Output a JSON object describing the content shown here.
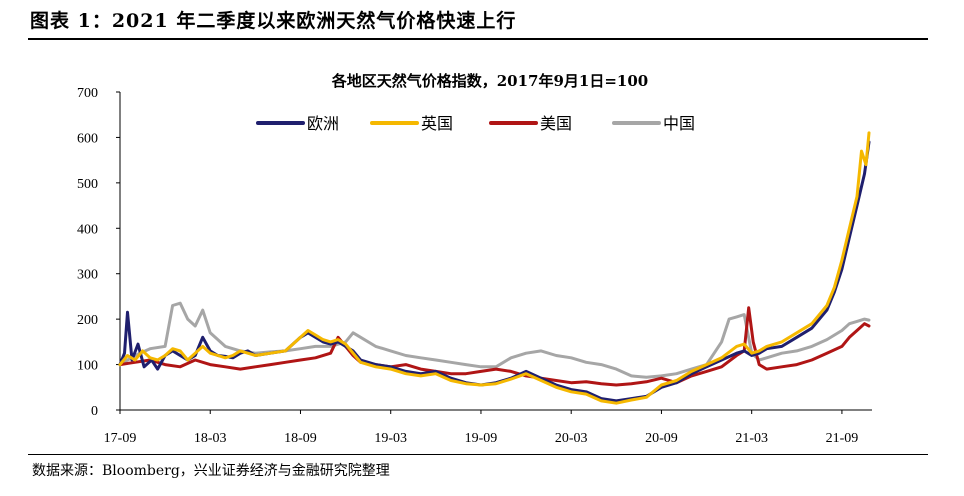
{
  "figure_title": "图表 1：2021 年二季度以来欧洲天然气价格快速上行",
  "source_note": "数据来源：Bloomberg，兴业证券经济与金融研究院整理",
  "chart_data": {
    "type": "line",
    "title": "各地区天然气价格指数，2017年9月1日=100",
    "xlabel": "",
    "ylabel": "",
    "ylim": [
      0,
      700
    ],
    "yticks": [
      0,
      100,
      200,
      300,
      400,
      500,
      600,
      700
    ],
    "xlim": [
      0,
      50
    ],
    "xticks": [
      {
        "label": "17-09",
        "value": 0
      },
      {
        "label": "18-03",
        "value": 6
      },
      {
        "label": "18-09",
        "value": 12
      },
      {
        "label": "19-03",
        "value": 18
      },
      {
        "label": "19-09",
        "value": 24
      },
      {
        "label": "20-03",
        "value": 30
      },
      {
        "label": "20-09",
        "value": 36
      },
      {
        "label": "21-03",
        "value": 42
      },
      {
        "label": "21-09",
        "value": 48
      }
    ],
    "grid": false,
    "legend_position": "top",
    "series": [
      {
        "name": "欧洲",
        "color": "#1f1f6e",
        "width": 3,
        "points": [
          [
            0,
            100
          ],
          [
            0.3,
            125
          ],
          [
            0.5,
            215
          ],
          [
            0.8,
            110
          ],
          [
            1.2,
            145
          ],
          [
            1.6,
            95
          ],
          [
            2.1,
            110
          ],
          [
            2.5,
            90
          ],
          [
            3,
            120
          ],
          [
            3.5,
            130
          ],
          [
            4,
            120
          ],
          [
            4.5,
            110
          ],
          [
            5,
            120
          ],
          [
            5.5,
            160
          ],
          [
            6,
            130
          ],
          [
            6.5,
            120
          ],
          [
            7,
            118
          ],
          [
            7.5,
            115
          ],
          [
            8,
            125
          ],
          [
            8.5,
            130
          ],
          [
            9,
            120
          ],
          [
            10,
            125
          ],
          [
            11,
            130
          ],
          [
            12,
            160
          ],
          [
            12.5,
            170
          ],
          [
            13,
            160
          ],
          [
            13.5,
            150
          ],
          [
            14,
            145
          ],
          [
            14.5,
            150
          ],
          [
            15,
            140
          ],
          [
            15.5,
            130
          ],
          [
            16,
            110
          ],
          [
            17,
            100
          ],
          [
            18,
            95
          ],
          [
            19,
            85
          ],
          [
            20,
            80
          ],
          [
            21,
            85
          ],
          [
            22,
            70
          ],
          [
            23,
            60
          ],
          [
            24,
            55
          ],
          [
            25,
            60
          ],
          [
            26,
            70
          ],
          [
            27,
            85
          ],
          [
            28,
            70
          ],
          [
            29,
            55
          ],
          [
            30,
            45
          ],
          [
            31,
            40
          ],
          [
            32,
            25
          ],
          [
            33,
            20
          ],
          [
            34,
            25
          ],
          [
            35,
            30
          ],
          [
            36,
            50
          ],
          [
            37,
            60
          ],
          [
            38,
            80
          ],
          [
            39,
            95
          ],
          [
            40,
            110
          ],
          [
            41,
            125
          ],
          [
            41.5,
            130
          ],
          [
            42,
            120
          ],
          [
            42.5,
            125
          ],
          [
            43,
            135
          ],
          [
            44,
            140
          ],
          [
            45,
            160
          ],
          [
            46,
            180
          ],
          [
            47,
            220
          ],
          [
            47.5,
            260
          ],
          [
            48,
            310
          ],
          [
            48.5,
            380
          ],
          [
            49,
            450
          ],
          [
            49.5,
            520
          ],
          [
            49.8,
            590
          ]
        ]
      },
      {
        "name": "英国",
        "color": "#f5b800",
        "width": 3,
        "points": [
          [
            0,
            100
          ],
          [
            0.5,
            120
          ],
          [
            1,
            110
          ],
          [
            1.5,
            130
          ],
          [
            2,
            115
          ],
          [
            2.5,
            110
          ],
          [
            3,
            120
          ],
          [
            3.5,
            135
          ],
          [
            4,
            130
          ],
          [
            4.5,
            110
          ],
          [
            5,
            125
          ],
          [
            5.5,
            140
          ],
          [
            6,
            125
          ],
          [
            6.5,
            120
          ],
          [
            7,
            115
          ],
          [
            7.5,
            120
          ],
          [
            8,
            130
          ],
          [
            9,
            120
          ],
          [
            10,
            125
          ],
          [
            11,
            130
          ],
          [
            12,
            160
          ],
          [
            12.5,
            175
          ],
          [
            13,
            165
          ],
          [
            13.5,
            155
          ],
          [
            14,
            150
          ],
          [
            14.5,
            155
          ],
          [
            15,
            145
          ],
          [
            15.5,
            125
          ],
          [
            16,
            105
          ],
          [
            17,
            95
          ],
          [
            18,
            90
          ],
          [
            19,
            80
          ],
          [
            20,
            75
          ],
          [
            21,
            80
          ],
          [
            22,
            65
          ],
          [
            23,
            58
          ],
          [
            24,
            55
          ],
          [
            25,
            58
          ],
          [
            26,
            68
          ],
          [
            27,
            80
          ],
          [
            28,
            65
          ],
          [
            29,
            50
          ],
          [
            30,
            40
          ],
          [
            31,
            35
          ],
          [
            32,
            20
          ],
          [
            33,
            15
          ],
          [
            34,
            22
          ],
          [
            35,
            28
          ],
          [
            36,
            55
          ],
          [
            37,
            65
          ],
          [
            38,
            85
          ],
          [
            39,
            100
          ],
          [
            40,
            115
          ],
          [
            41,
            140
          ],
          [
            41.5,
            145
          ],
          [
            42,
            125
          ],
          [
            42.5,
            130
          ],
          [
            43,
            140
          ],
          [
            44,
            150
          ],
          [
            45,
            170
          ],
          [
            46,
            190
          ],
          [
            47,
            230
          ],
          [
            47.5,
            270
          ],
          [
            48,
            330
          ],
          [
            48.5,
            400
          ],
          [
            49,
            470
          ],
          [
            49.3,
            570
          ],
          [
            49.6,
            540
          ],
          [
            49.8,
            610
          ]
        ]
      },
      {
        "name": "美国",
        "color": "#b01515",
        "width": 3,
        "points": [
          [
            0,
            100
          ],
          [
            1,
            105
          ],
          [
            2,
            110
          ],
          [
            3,
            100
          ],
          [
            4,
            95
          ],
          [
            5,
            110
          ],
          [
            6,
            100
          ],
          [
            7,
            95
          ],
          [
            8,
            90
          ],
          [
            9,
            95
          ],
          [
            10,
            100
          ],
          [
            11,
            105
          ],
          [
            12,
            110
          ],
          [
            13,
            115
          ],
          [
            14,
            125
          ],
          [
            14.5,
            160
          ],
          [
            15,
            140
          ],
          [
            15.5,
            120
          ],
          [
            16,
            105
          ],
          [
            17,
            100
          ],
          [
            18,
            95
          ],
          [
            19,
            100
          ],
          [
            20,
            90
          ],
          [
            21,
            85
          ],
          [
            22,
            80
          ],
          [
            23,
            80
          ],
          [
            24,
            85
          ],
          [
            25,
            90
          ],
          [
            26,
            85
          ],
          [
            27,
            75
          ],
          [
            28,
            70
          ],
          [
            29,
            65
          ],
          [
            30,
            60
          ],
          [
            31,
            62
          ],
          [
            32,
            58
          ],
          [
            33,
            55
          ],
          [
            34,
            58
          ],
          [
            35,
            62
          ],
          [
            36,
            70
          ],
          [
            37,
            60
          ],
          [
            38,
            75
          ],
          [
            39,
            85
          ],
          [
            40,
            95
          ],
          [
            41,
            120
          ],
          [
            41.5,
            130
          ],
          [
            41.8,
            225
          ],
          [
            42.1,
            150
          ],
          [
            42.5,
            100
          ],
          [
            43,
            90
          ],
          [
            44,
            95
          ],
          [
            45,
            100
          ],
          [
            46,
            110
          ],
          [
            47,
            125
          ],
          [
            48,
            140
          ],
          [
            48.5,
            160
          ],
          [
            49,
            175
          ],
          [
            49.5,
            190
          ],
          [
            49.8,
            185
          ]
        ]
      },
      {
        "name": "中国",
        "color": "#a6a6a6",
        "width": 3,
        "points": [
          [
            0,
            100
          ],
          [
            1,
            120
          ],
          [
            2,
            135
          ],
          [
            3,
            140
          ],
          [
            3.5,
            230
          ],
          [
            4,
            235
          ],
          [
            4.5,
            200
          ],
          [
            5,
            185
          ],
          [
            5.5,
            220
          ],
          [
            6,
            170
          ],
          [
            7,
            140
          ],
          [
            8,
            130
          ],
          [
            9,
            125
          ],
          [
            10,
            128
          ],
          [
            11,
            130
          ],
          [
            12,
            135
          ],
          [
            13,
            140
          ],
          [
            14,
            140
          ],
          [
            15,
            150
          ],
          [
            15.5,
            170
          ],
          [
            16,
            160
          ],
          [
            17,
            140
          ],
          [
            18,
            130
          ],
          [
            19,
            120
          ],
          [
            20,
            115
          ],
          [
            21,
            110
          ],
          [
            22,
            105
          ],
          [
            23,
            100
          ],
          [
            24,
            95
          ],
          [
            25,
            95
          ],
          [
            26,
            115
          ],
          [
            27,
            125
          ],
          [
            28,
            130
          ],
          [
            29,
            120
          ],
          [
            30,
            115
          ],
          [
            31,
            105
          ],
          [
            32,
            100
          ],
          [
            33,
            90
          ],
          [
            34,
            75
          ],
          [
            35,
            72
          ],
          [
            36,
            75
          ],
          [
            37,
            80
          ],
          [
            38,
            90
          ],
          [
            39,
            100
          ],
          [
            40,
            150
          ],
          [
            40.5,
            200
          ],
          [
            41,
            205
          ],
          [
            41.5,
            210
          ],
          [
            42,
            125
          ],
          [
            42.5,
            110
          ],
          [
            43,
            115
          ],
          [
            44,
            125
          ],
          [
            45,
            130
          ],
          [
            46,
            140
          ],
          [
            47,
            155
          ],
          [
            48,
            175
          ],
          [
            48.5,
            190
          ],
          [
            49,
            195
          ],
          [
            49.5,
            200
          ],
          [
            49.8,
            198
          ]
        ]
      }
    ]
  }
}
